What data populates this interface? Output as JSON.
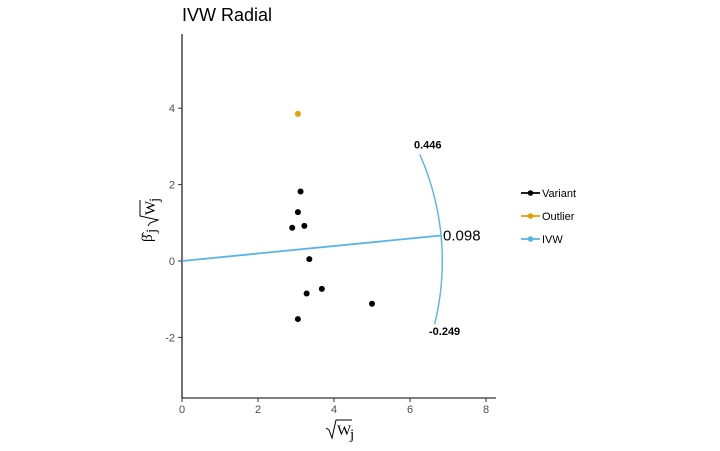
{
  "chart_data": {
    "type": "scatter",
    "title": "IVW Radial",
    "xlabel": "√W_j",
    "ylabel": "β̂_j √W_j",
    "xlim": [
      0,
      8.2
    ],
    "ylim": [
      -3.6,
      5.9
    ],
    "x_ticks": [
      0,
      2,
      4,
      6,
      8
    ],
    "y_ticks": [
      -2,
      0,
      2,
      4
    ],
    "grid": false,
    "legend_position": "right",
    "series": [
      {
        "name": "Variant",
        "color": "#000000",
        "points": [
          {
            "x": 3.12,
            "y": 1.82
          },
          {
            "x": 3.05,
            "y": 1.28
          },
          {
            "x": 3.22,
            "y": 0.92
          },
          {
            "x": 2.9,
            "y": 0.87
          },
          {
            "x": 3.35,
            "y": 0.05
          },
          {
            "x": 3.68,
            "y": -0.73
          },
          {
            "x": 3.28,
            "y": -0.85
          },
          {
            "x": 5.0,
            "y": -1.12
          },
          {
            "x": 3.05,
            "y": -1.52
          }
        ]
      },
      {
        "name": "Outlier",
        "color": "#E69F00",
        "points": [
          {
            "x": 3.05,
            "y": 3.85
          }
        ]
      },
      {
        "name": "IVW",
        "color": "#56B4E9",
        "slope": 0.098
      }
    ],
    "arc": {
      "color": "#56B4E9",
      "radius": 6.85,
      "upper_label": "0.446",
      "estimate_label": "0.098",
      "lower_label": "-0.249"
    }
  }
}
